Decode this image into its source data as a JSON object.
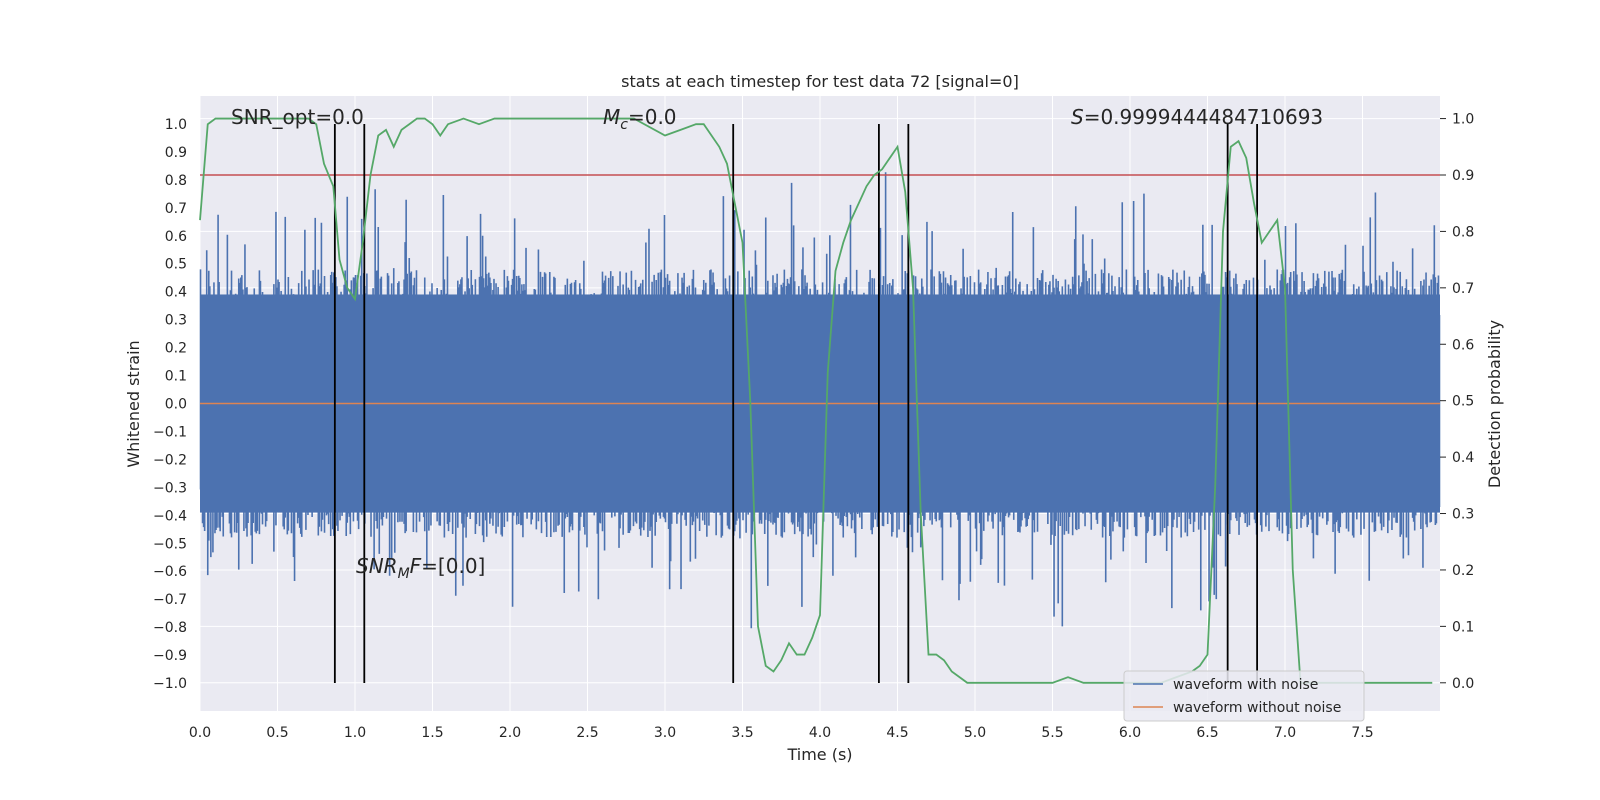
{
  "chart_data": {
    "type": "line",
    "title": "stats at each timestep for test data 72 [signal=0]",
    "xlabel": "Time (s)",
    "ylabel": "Whitened strain",
    "y2label": "Detection probability",
    "xlim": [
      0.0,
      8.0
    ],
    "ylim": [
      -1.1,
      1.1
    ],
    "y2lim": [
      -0.05,
      1.04
    ],
    "x_ticks": [
      0.0,
      0.5,
      1.0,
      1.5,
      2.0,
      2.5,
      3.0,
      3.5,
      4.0,
      4.5,
      5.0,
      5.5,
      6.0,
      6.5,
      7.0,
      7.5
    ],
    "x_tick_labels": [
      "0.0",
      "0.5",
      "1.0",
      "1.5",
      "2.0",
      "2.5",
      "3.0",
      "3.5",
      "4.0",
      "4.5",
      "5.0",
      "5.5",
      "6.0",
      "6.5",
      "7.0",
      "7.5"
    ],
    "y_ticks": [
      1.0,
      0.9,
      0.8,
      0.7,
      0.6,
      0.5,
      0.4,
      0.3,
      0.2,
      0.1,
      0.0,
      -0.1,
      -0.2,
      -0.3,
      -0.4,
      -0.5,
      -0.6,
      -0.7,
      -0.8,
      -0.9,
      -1.0
    ],
    "y_tick_labels": [
      "1.0",
      "0.9",
      "0.8",
      "0.7",
      "0.6",
      "0.5",
      "0.4",
      "0.3",
      "0.2",
      "0.1",
      "0.0",
      "−0.1",
      "−0.2",
      "−0.3",
      "−0.4",
      "−0.5",
      "−0.6",
      "−0.7",
      "−0.8",
      "−0.9",
      "−1.0"
    ],
    "y2_ticks": [
      1.0,
      0.9,
      0.8,
      0.7,
      0.6,
      0.5,
      0.4,
      0.3,
      0.2,
      0.1,
      0.0
    ],
    "y2_tick_labels": [
      "1.0",
      "0.9",
      "0.8",
      "0.7",
      "0.6",
      "0.5",
      "0.4",
      "0.3",
      "0.2",
      "0.1",
      "0.0"
    ],
    "grid": true,
    "legend_position": "lower-right",
    "colors": {
      "plot_bg": "#eaeaf2",
      "grid": "#ffffff",
      "noise": "#4c72b0",
      "clean": "#dd8452",
      "prob": "#55a868",
      "threshold": "#c44e52",
      "event": "#000000"
    },
    "series": [
      {
        "name": "waveform with noise",
        "color": "#4c72b0",
        "description_envelope": {
          "typical_abs": 0.4,
          "peak_max": 0.98,
          "peak_min": -1.0
        }
      },
      {
        "name": "waveform without noise",
        "color": "#dd8452",
        "constant_value": 0.0
      }
    ],
    "detection_probability": {
      "color": "#55a868",
      "x": [
        0.0,
        0.05,
        0.1,
        0.2,
        0.3,
        0.4,
        0.5,
        0.6,
        0.7,
        0.75,
        0.8,
        0.86,
        0.9,
        0.95,
        1.0,
        1.05,
        1.1,
        1.15,
        1.2,
        1.25,
        1.3,
        1.35,
        1.4,
        1.45,
        1.5,
        1.55,
        1.6,
        1.7,
        1.8,
        1.9,
        2.0,
        2.2,
        2.4,
        2.6,
        2.8,
        3.0,
        3.1,
        3.2,
        3.25,
        3.3,
        3.35,
        3.4,
        3.45,
        3.5,
        3.55,
        3.6,
        3.65,
        3.7,
        3.75,
        3.8,
        3.85,
        3.9,
        3.95,
        4.0,
        4.05,
        4.1,
        4.15,
        4.2,
        4.25,
        4.3,
        4.35,
        4.4,
        4.45,
        4.5,
        4.55,
        4.6,
        4.65,
        4.7,
        4.75,
        4.8,
        4.85,
        4.9,
        4.95,
        5.0,
        5.1,
        5.2,
        5.3,
        5.4,
        5.5,
        5.6,
        5.7,
        5.8,
        5.9,
        6.0,
        6.1,
        6.2,
        6.3,
        6.4,
        6.45,
        6.5,
        6.55,
        6.6,
        6.65,
        6.7,
        6.75,
        6.8,
        6.85,
        6.9,
        6.95,
        7.0,
        7.05,
        7.1,
        7.15,
        7.2,
        7.3,
        7.4,
        7.5,
        7.6,
        7.7,
        7.8,
        7.9,
        7.95
      ],
      "y": [
        0.82,
        0.99,
        1.0,
        1.0,
        1.0,
        1.0,
        1.0,
        1.0,
        1.0,
        0.99,
        0.92,
        0.88,
        0.75,
        0.7,
        0.68,
        0.78,
        0.9,
        0.97,
        0.98,
        0.95,
        0.98,
        0.99,
        1.0,
        1.0,
        0.99,
        0.97,
        0.99,
        1.0,
        0.99,
        1.0,
        1.0,
        1.0,
        1.0,
        1.0,
        1.0,
        0.97,
        0.98,
        0.99,
        0.99,
        0.97,
        0.95,
        0.92,
        0.85,
        0.78,
        0.5,
        0.1,
        0.03,
        0.02,
        0.04,
        0.07,
        0.05,
        0.05,
        0.08,
        0.12,
        0.55,
        0.73,
        0.78,
        0.82,
        0.85,
        0.88,
        0.9,
        0.91,
        0.93,
        0.95,
        0.87,
        0.7,
        0.3,
        0.05,
        0.05,
        0.04,
        0.02,
        0.01,
        0.0,
        0.0,
        0.0,
        0.0,
        0.0,
        0.0,
        0.0,
        0.01,
        0.0,
        0.0,
        0.0,
        0.0,
        0.0,
        0.0,
        0.01,
        0.02,
        0.03,
        0.05,
        0.35,
        0.8,
        0.95,
        0.96,
        0.93,
        0.85,
        0.78,
        0.8,
        0.82,
        0.7,
        0.2,
        0.0,
        0.0,
        0.0,
        0.0,
        0.0,
        0.0,
        0.0,
        0.0,
        0.0,
        0.0,
        0.0
      ]
    },
    "threshold": {
      "value": 0.9,
      "axis": "y2",
      "color": "#c44e52"
    },
    "event_lines": [
      0.87,
      1.06,
      3.44,
      4.38,
      4.57,
      6.63,
      6.82
    ],
    "annotations": {
      "snr_opt": "SNR_opt=0.0",
      "mc_label": "M",
      "mc_sub": "c",
      "mc_value": "=0.0",
      "s_label": "S",
      "s_value": "=0.9999444484710693",
      "snrmf_label": "SNR",
      "snrmf_sub": "M",
      "snrmf_f": "F",
      "snrmf_value": "=[0.0]"
    },
    "legend": {
      "entries": [
        "waveform with noise",
        "waveform without noise"
      ]
    }
  }
}
